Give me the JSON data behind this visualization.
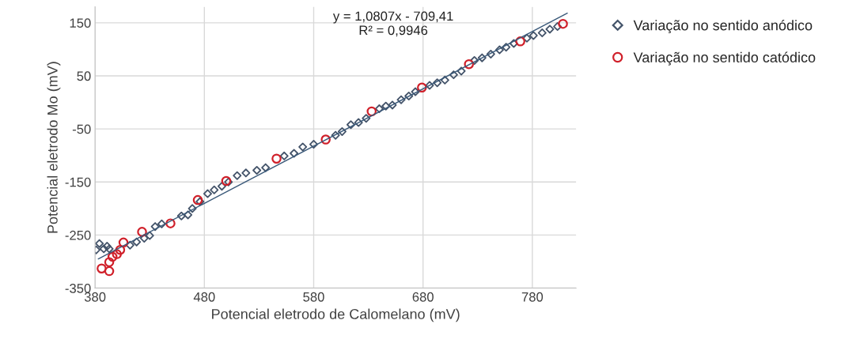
{
  "chart_data": {
    "type": "scatter",
    "xlabel": "Potencial eletrodo de Calomelano (mV)",
    "ylabel": "Potencial eletrodo Mo (mV)",
    "xlim": [
      380,
      820
    ],
    "xticks": [
      380,
      480,
      580,
      680,
      780
    ],
    "ylim": [
      -350,
      180
    ],
    "yticks": [
      -350,
      -250,
      -150,
      -50,
      50,
      150
    ],
    "grid": true,
    "legend": "right",
    "annotations": [
      "y = 1,0807x - 709,41\nR² = 0,9946"
    ],
    "series": [
      {
        "name": "Variação no sentido anódico",
        "color": "#44546a",
        "marker": "diamond",
        "x": [
          381,
          384,
          388,
          391,
          393,
          412,
          418,
          425,
          430,
          435,
          441,
          459,
          465,
          469,
          476,
          483,
          489,
          496,
          502,
          510,
          518,
          528,
          536,
          553,
          562,
          570,
          580,
          600,
          606,
          614,
          621,
          628,
          640,
          646,
          652,
          660,
          667,
          673,
          686,
          693,
          700,
          708,
          715,
          727,
          734,
          742,
          750,
          756,
          763,
          775,
          781,
          789,
          796,
          803
        ],
        "values": [
          -278,
          -266,
          -276,
          -271,
          -276,
          -269,
          -263,
          -256,
          -251,
          -234,
          -229,
          -214,
          -212,
          -200,
          -187,
          -172,
          -165,
          -158,
          -150,
          -138,
          -133,
          -128,
          -123,
          -101,
          -96,
          -84,
          -79,
          -62,
          -55,
          -42,
          -38,
          -30,
          -12,
          -7,
          -5,
          5,
          12,
          20,
          32,
          37,
          42,
          52,
          59,
          79,
          84,
          91,
          99,
          104,
          111,
          121,
          126,
          131,
          138,
          143
        ]
      },
      {
        "name": "Variação no sentido catódico",
        "color": "#d0202a",
        "marker": "circle",
        "x": [
          808,
          769,
          722,
          679,
          633,
          591,
          546,
          500,
          474,
          449,
          423,
          406,
          403,
          400,
          396,
          393,
          386,
          393
        ],
        "values": [
          148,
          115,
          72,
          28,
          -17,
          -70,
          -106,
          -148,
          -184,
          -228,
          -244,
          -264,
          -278,
          -286,
          -291,
          -301,
          -313,
          -318
        ]
      },
      {
        "type": "line",
        "color": "#3b5a7a",
        "marker": "none",
        "line_style": "solid",
        "x": [
          383,
          812
        ],
        "values": [
          -295,
          168
        ]
      }
    ]
  }
}
